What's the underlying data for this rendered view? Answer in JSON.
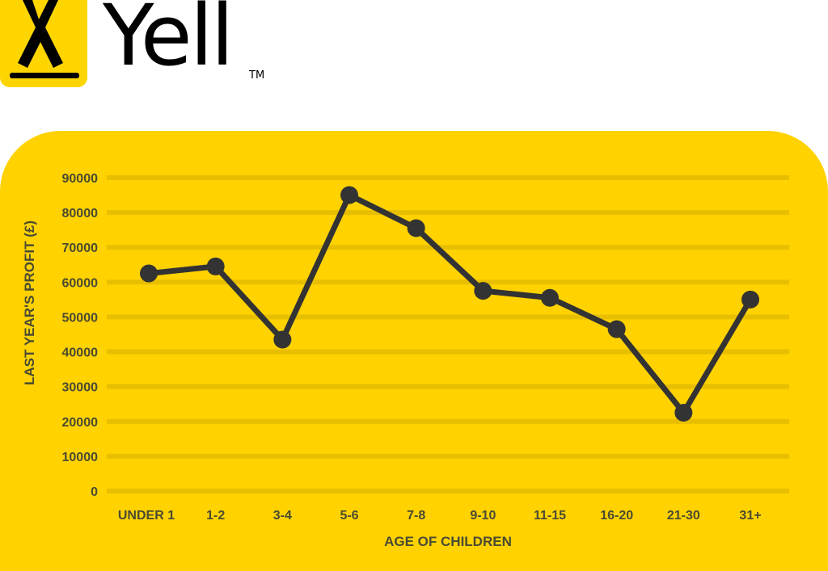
{
  "brand": {
    "name": "Yell",
    "trademark": "TM",
    "badge_color": "#ffd500"
  },
  "chart_data": {
    "type": "line",
    "title": "",
    "xlabel": "AGE OF CHILDREN",
    "ylabel": "LAST YEAR'S PROFIT (£)",
    "categories": [
      "UNDER 1",
      "1-2",
      "3-4",
      "5-6",
      "7-8",
      "9-10",
      "11-15",
      "16-20",
      "21-30",
      "31+"
    ],
    "values": [
      62500,
      64500,
      43500,
      85000,
      75500,
      57500,
      55500,
      46500,
      22500,
      55000
    ],
    "yticks": [
      0,
      10000,
      20000,
      30000,
      40000,
      50000,
      60000,
      70000,
      80000,
      90000
    ],
    "ylim": [
      0,
      90000
    ],
    "grid": true,
    "legend": "none",
    "colors": {
      "background": "#ffd200",
      "line": "#333333",
      "gridline": "#e8bf00",
      "text": "#4a4a32"
    }
  }
}
